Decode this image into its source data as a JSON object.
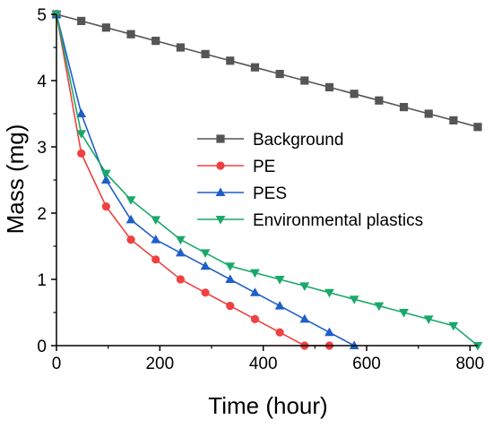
{
  "chart_data": {
    "type": "line",
    "xlabel": "Time (hour)",
    "ylabel": "Mass (mg)",
    "xlim": [
      0,
      815
    ],
    "ylim": [
      0,
      5
    ],
    "xticks": [
      0,
      200,
      400,
      600,
      800
    ],
    "yticks": [
      0,
      1,
      2,
      3,
      4,
      5
    ],
    "grid": false,
    "legend_position": "right-center",
    "series": [
      {
        "name": "Background",
        "color": "#555555",
        "marker": "square",
        "x": [
          0,
          48,
          96,
          144,
          192,
          240,
          288,
          336,
          384,
          432,
          480,
          528,
          576,
          624,
          672,
          720,
          768,
          815
        ],
        "y": [
          5.0,
          4.9,
          4.8,
          4.7,
          4.6,
          4.5,
          4.4,
          4.3,
          4.2,
          4.1,
          4.0,
          3.9,
          3.8,
          3.7,
          3.6,
          3.5,
          3.4,
          3.3
        ]
      },
      {
        "name": "PE",
        "color": "#f04040",
        "marker": "circle",
        "x": [
          0,
          48,
          96,
          144,
          192,
          240,
          288,
          336,
          384,
          432,
          480,
          528
        ],
        "y": [
          5.0,
          2.9,
          2.1,
          1.6,
          1.3,
          1.0,
          0.8,
          0.6,
          0.4,
          0.2,
          0.0,
          0.0
        ]
      },
      {
        "name": "PES",
        "color": "#1f5fc8",
        "marker": "triangle-up",
        "x": [
          0,
          48,
          96,
          144,
          192,
          240,
          288,
          336,
          384,
          432,
          480,
          528,
          576
        ],
        "y": [
          5.0,
          3.5,
          2.5,
          1.9,
          1.6,
          1.4,
          1.2,
          1.0,
          0.8,
          0.6,
          0.4,
          0.2,
          0.0
        ]
      },
      {
        "name": "Environmental plastics",
        "color": "#1aa86a",
        "marker": "triangle-down",
        "x": [
          0,
          48,
          96,
          144,
          192,
          240,
          288,
          336,
          384,
          432,
          480,
          528,
          576,
          624,
          672,
          720,
          768,
          815
        ],
        "y": [
          5.0,
          3.2,
          2.6,
          2.2,
          1.9,
          1.6,
          1.4,
          1.2,
          1.1,
          1.0,
          0.9,
          0.8,
          0.7,
          0.6,
          0.5,
          0.4,
          0.3,
          0.0
        ]
      }
    ]
  }
}
